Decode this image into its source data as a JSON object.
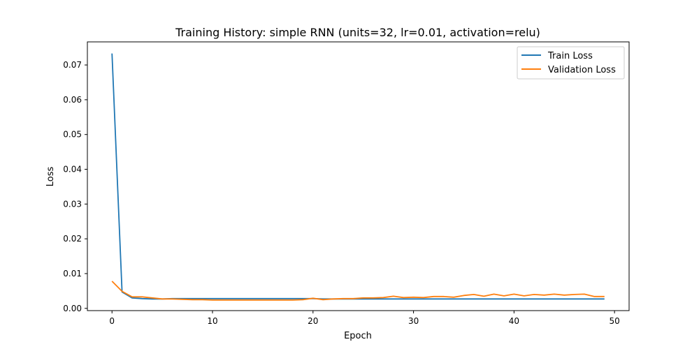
{
  "chart_data": {
    "type": "line",
    "title": "Training History: simple RNN (units=32, lr=0.01, activation=relu)",
    "xlabel": "Epoch",
    "ylabel": "Loss",
    "xlim": [
      -2.45,
      51.45
    ],
    "ylim": [
      -0.00065,
      0.07664
    ],
    "xticks": [
      0,
      10,
      20,
      30,
      40,
      50
    ],
    "xtick_labels": [
      "0",
      "10",
      "20",
      "30",
      "40",
      "50"
    ],
    "yticks": [
      0.0,
      0.01,
      0.02,
      0.03,
      0.04,
      0.05,
      0.06,
      0.07
    ],
    "ytick_labels": [
      "0.00",
      "0.01",
      "0.02",
      "0.03",
      "0.04",
      "0.05",
      "0.06",
      "0.07"
    ],
    "grid": false,
    "legend_position": "top-right",
    "x": [
      0,
      1,
      2,
      3,
      4,
      5,
      6,
      7,
      8,
      9,
      10,
      11,
      12,
      13,
      14,
      15,
      16,
      17,
      18,
      19,
      20,
      21,
      22,
      23,
      24,
      25,
      26,
      27,
      28,
      29,
      30,
      31,
      32,
      33,
      34,
      35,
      36,
      37,
      38,
      39,
      40,
      41,
      42,
      43,
      44,
      45,
      46,
      47,
      48,
      49
    ],
    "series": [
      {
        "name": "Train Loss",
        "color": "#1f77b4",
        "values": [
          0.0733,
          0.0047,
          0.003,
          0.0028,
          0.0027,
          0.0027,
          0.0028,
          0.0028,
          0.0028,
          0.0028,
          0.0028,
          0.0028,
          0.0028,
          0.0028,
          0.0028,
          0.0028,
          0.0028,
          0.0028,
          0.0028,
          0.0028,
          0.0028,
          0.0027,
          0.0027,
          0.0027,
          0.0027,
          0.0027,
          0.0027,
          0.0027,
          0.0027,
          0.0027,
          0.0027,
          0.0027,
          0.0027,
          0.0027,
          0.0027,
          0.0027,
          0.0027,
          0.0027,
          0.0027,
          0.0027,
          0.0027,
          0.0027,
          0.0027,
          0.0027,
          0.0027,
          0.0027,
          0.0027,
          0.0027,
          0.0027,
          0.0027
        ]
      },
      {
        "name": "Validation Loss",
        "color": "#ff7f0e",
        "values": [
          0.0078,
          0.0049,
          0.0033,
          0.0033,
          0.003,
          0.0027,
          0.0027,
          0.0026,
          0.0025,
          0.0025,
          0.0024,
          0.0024,
          0.0024,
          0.0024,
          0.0024,
          0.0024,
          0.0024,
          0.0024,
          0.0024,
          0.0025,
          0.0029,
          0.0025,
          0.0027,
          0.0028,
          0.0028,
          0.003,
          0.003,
          0.0031,
          0.0035,
          0.0031,
          0.0032,
          0.0031,
          0.0034,
          0.0034,
          0.0032,
          0.0037,
          0.004,
          0.0035,
          0.0041,
          0.0036,
          0.0041,
          0.0036,
          0.004,
          0.0038,
          0.0041,
          0.0038,
          0.004,
          0.0041,
          0.0034,
          0.0034
        ]
      }
    ]
  }
}
